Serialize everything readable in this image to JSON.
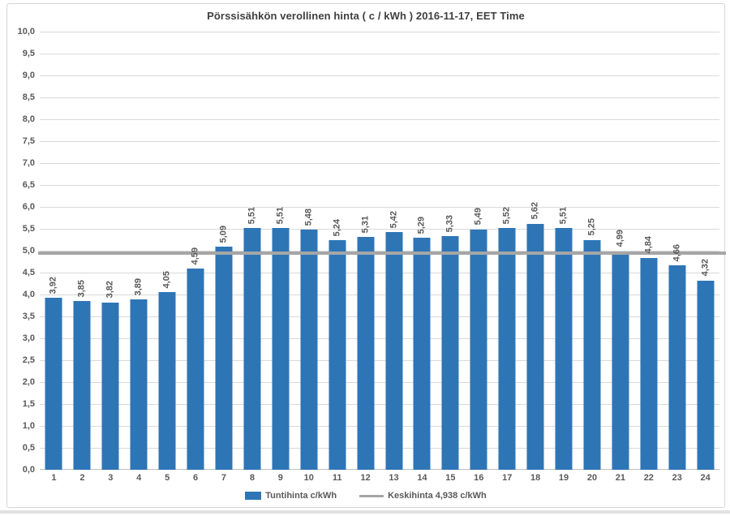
{
  "title": "Pörssisähkön verollinen hinta ( c / kWh ) 2016-11-17, EET Time",
  "legend": {
    "series1_label": "Tuntihinta c/kWh",
    "series2_label": "Keskihinta 4,938 c/kWh"
  },
  "colors": {
    "bar": "#2e75b6",
    "average_line": "#a6a6a6",
    "gridline": "#d9d9d9",
    "axis_text": "#595959",
    "title_text": "#404040"
  },
  "chart_data": {
    "type": "bar",
    "title": "Pörssisähkön verollinen hinta ( c / kWh ) 2016-11-17, EET Time",
    "xlabel": "",
    "ylabel": "",
    "categories": [
      "1",
      "2",
      "3",
      "4",
      "5",
      "6",
      "7",
      "8",
      "9",
      "10",
      "11",
      "12",
      "13",
      "14",
      "15",
      "16",
      "17",
      "18",
      "19",
      "20",
      "21",
      "22",
      "23",
      "24"
    ],
    "values": [
      3.92,
      3.85,
      3.82,
      3.89,
      4.05,
      4.59,
      5.09,
      5.51,
      5.51,
      5.48,
      5.24,
      5.31,
      5.42,
      5.29,
      5.33,
      5.49,
      5.52,
      5.62,
      5.51,
      5.25,
      4.99,
      4.84,
      4.66,
      4.32
    ],
    "value_labels": [
      "3,92",
      "3,85",
      "3,82",
      "3,89",
      "4,05",
      "4,59",
      "5,09",
      "5,51",
      "5,51",
      "5,48",
      "5,24",
      "5,31",
      "5,42",
      "5,29",
      "5,33",
      "5,49",
      "5,52",
      "5,62",
      "5,51",
      "5,25",
      "4,99",
      "4,84",
      "4,66",
      "4,32"
    ],
    "series_name": "Tuntihinta c/kWh",
    "average_value": 4.938,
    "average_series_name": "Keskihinta 4,938 c/kWh",
    "ylim": [
      0,
      10
    ],
    "ytick_step": 0.5,
    "ytick_labels": [
      "0,0",
      "0,5",
      "1,0",
      "1,5",
      "2,0",
      "2,5",
      "3,0",
      "3,5",
      "4,0",
      "4,5",
      "5,0",
      "5,5",
      "6,0",
      "6,5",
      "7,0",
      "7,5",
      "8,0",
      "8,5",
      "9,0",
      "9,5",
      "10,0"
    ],
    "grid": true,
    "legend_position": "bottom"
  }
}
